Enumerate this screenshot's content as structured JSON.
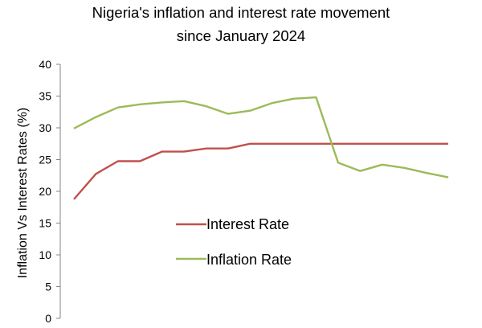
{
  "chart_data": {
    "type": "line",
    "title": [
      "Nigeria's inflation and interest rate movement",
      "since January 2024"
    ],
    "xlabel": "",
    "ylabel": "Inflation Vs Interest Rates (%)",
    "ylim": [
      0,
      40
    ],
    "yticks": [
      "0",
      "5",
      "10",
      "15",
      "20",
      "25",
      "30",
      "35",
      "40"
    ],
    "grid": false,
    "legend_position": "center-left",
    "series": [
      {
        "name": "Interest Rate",
        "color": "#c0504d",
        "values": [
          18.75,
          22.75,
          24.75,
          24.75,
          26.25,
          26.25,
          26.75,
          26.75,
          27.5,
          27.5,
          27.5,
          27.5,
          27.5,
          27.5,
          27.5,
          27.5,
          27.5,
          27.5
        ]
      },
      {
        "name": "Inflation Rate",
        "color": "#9bbb59",
        "values": [
          29.9,
          31.7,
          33.2,
          33.7,
          34.0,
          34.2,
          33.4,
          32.2,
          32.7,
          33.9,
          34.6,
          34.8,
          24.5,
          23.2,
          24.2,
          23.7,
          22.9,
          22.2
        ]
      }
    ]
  }
}
